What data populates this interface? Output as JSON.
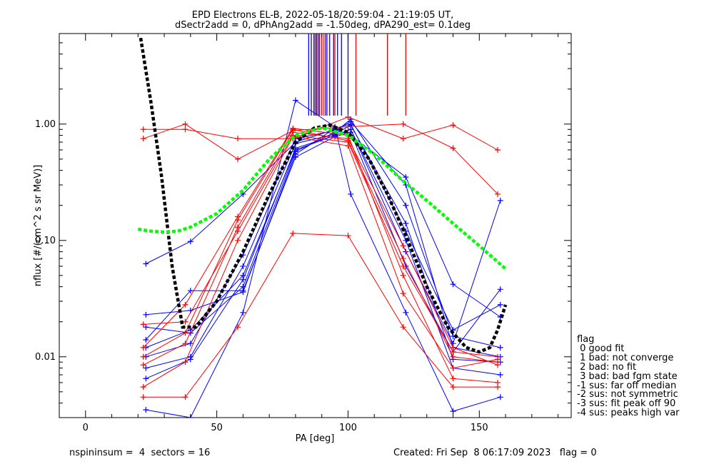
{
  "title": {
    "line1": "EPD Electrons EL-B, 2022-05-18/20:59:04 - 21:19:05 UT,",
    "line2": "dSectr2add = 0, dPhAng2add = -1.50deg, dPA290_est=   0.1deg"
  },
  "footer": {
    "left": "nspininsum =  4  sectors = 16",
    "right": "Created: Fri Sep  8 06:17:09 2023   flag = 0"
  },
  "legend": {
    "title": "flag",
    "items": [
      " 0 good fit",
      " 1 bad: not converge",
      " 2 bad: no fit",
      " 3 bad: bad fgm state",
      "-1 sus: far off median",
      "-2 sus: not symmetric",
      "-3 sus: fit peak off 90",
      "-4 sus: peaks high var"
    ]
  },
  "colors": {
    "blue": "#0000ff",
    "red": "#ff0000",
    "green": "#00ff00",
    "black": "#000000"
  },
  "chart_data": {
    "type": "line",
    "xlabel": "PA [deg]",
    "ylabel": "nflux [#/(cm^2 s sr MeV)]",
    "xlim": [
      -10,
      185
    ],
    "ylim": [
      0.003,
      6
    ],
    "ylog": true,
    "xticks": [
      0,
      50,
      100,
      150
    ],
    "yticks": [
      0.01,
      0.1,
      1.0
    ],
    "ytick_labels": [
      "0.01",
      "0.10",
      "1.00"
    ],
    "series": [
      {
        "color": "blue",
        "x": [
          23,
          40,
          60,
          80,
          95,
          101,
          122,
          140,
          158
        ],
        "y": [
          0.0035,
          0.003,
          0.024,
          1.6,
          0.95,
          0.25,
          0.024,
          0.0034,
          0.0045
        ]
      },
      {
        "color": "blue",
        "x": [
          23,
          40,
          60,
          80,
          95,
          101,
          122,
          140,
          158
        ],
        "y": [
          0.0065,
          0.0095,
          0.046,
          0.62,
          0.8,
          0.9,
          0.1,
          0.008,
          0.007
        ]
      },
      {
        "color": "blue",
        "x": [
          23,
          40,
          60,
          80,
          95,
          101,
          122,
          140,
          158
        ],
        "y": [
          0.008,
          0.01,
          0.06,
          0.68,
          0.82,
          0.98,
          0.14,
          0.0095,
          0.009
        ]
      },
      {
        "color": "blue",
        "x": [
          23,
          40,
          60,
          80,
          95,
          101,
          122,
          140,
          158
        ],
        "y": [
          0.01,
          0.013,
          0.075,
          0.75,
          0.88,
          1.05,
          0.3,
          0.012,
          0.01
        ]
      },
      {
        "color": "blue",
        "x": [
          23,
          40,
          60,
          80,
          95,
          101,
          122,
          140,
          158
        ],
        "y": [
          0.018,
          0.016,
          0.04,
          0.58,
          0.85,
          1.1,
          0.2,
          0.015,
          0.012
        ]
      },
      {
        "color": "blue",
        "x": [
          23,
          40,
          60,
          80,
          95,
          101,
          122,
          140,
          158
        ],
        "y": [
          0.023,
          0.025,
          0.036,
          0.55,
          0.92,
          1.0,
          0.12,
          0.017,
          0.028
        ]
      },
      {
        "color": "blue",
        "x": [
          23,
          40,
          60,
          80,
          95,
          101,
          122,
          140,
          158
        ],
        "y": [
          0.063,
          0.098,
          0.25,
          0.7,
          0.9,
          0.8,
          0.35,
          0.042,
          0.022
        ]
      },
      {
        "color": "blue",
        "x": [
          23,
          40,
          60,
          80,
          95,
          101,
          122,
          140,
          158
        ],
        "y": [
          0.012,
          0.017,
          0.05,
          0.6,
          0.8,
          0.9,
          0.08,
          0.013,
          0.22
        ]
      },
      {
        "color": "blue",
        "x": [
          23,
          40,
          60,
          80,
          95,
          101,
          122,
          140,
          158
        ],
        "y": [
          0.014,
          0.037,
          0.037,
          0.52,
          0.78,
          0.85,
          0.06,
          0.011,
          0.038
        ]
      },
      {
        "color": "red",
        "x": [
          22,
          38,
          58,
          79,
          100,
          121,
          140,
          157
        ],
        "y": [
          0.0045,
          0.0045,
          0.018,
          0.115,
          0.11,
          0.018,
          0.0055,
          0.0055
        ]
      },
      {
        "color": "red",
        "x": [
          22,
          38,
          58,
          79,
          100,
          121,
          140,
          157
        ],
        "y": [
          0.9,
          0.9,
          0.75,
          0.75,
          1.15,
          0.75,
          0.98,
          0.6
        ]
      },
      {
        "color": "red",
        "x": [
          22,
          38,
          58,
          79,
          100,
          121,
          140,
          157
        ],
        "y": [
          0.75,
          1.0,
          0.5,
          0.88,
          0.95,
          1.0,
          0.62,
          0.25
        ]
      },
      {
        "color": "red",
        "x": [
          22,
          38,
          58,
          79,
          100,
          121,
          140,
          157
        ],
        "y": [
          0.0085,
          0.013,
          0.13,
          0.85,
          0.75,
          0.09,
          0.012,
          0.0085
        ]
      },
      {
        "color": "red",
        "x": [
          22,
          38,
          58,
          79,
          100,
          121,
          140,
          157
        ],
        "y": [
          0.01,
          0.016,
          0.15,
          0.9,
          0.72,
          0.07,
          0.01,
          0.009
        ]
      },
      {
        "color": "red",
        "x": [
          22,
          38,
          58,
          79,
          100,
          121,
          140,
          157
        ],
        "y": [
          0.019,
          0.02,
          0.12,
          0.8,
          0.7,
          0.06,
          0.011,
          0.01
        ]
      },
      {
        "color": "red",
        "x": [
          22,
          38,
          58,
          79,
          100,
          121,
          140,
          157
        ],
        "y": [
          0.012,
          0.028,
          0.16,
          0.92,
          0.8,
          0.05,
          0.0065,
          0.006
        ]
      },
      {
        "color": "red",
        "x": [
          22,
          38,
          58,
          79,
          100,
          121,
          140,
          157
        ],
        "y": [
          0.0055,
          0.009,
          0.1,
          0.78,
          0.65,
          0.035,
          0.008,
          0.0095
        ]
      }
    ],
    "fit_curves": [
      {
        "color": "black",
        "style": "dashed",
        "x": [
          21,
          25,
          29,
          33,
          37,
          42,
          50,
          60,
          70,
          80,
          87,
          93,
          100,
          108,
          115,
          122,
          130,
          138,
          145,
          150,
          154,
          157,
          160
        ],
        "y": [
          5.5,
          1.5,
          0.35,
          0.06,
          0.018,
          0.018,
          0.03,
          0.08,
          0.25,
          0.7,
          0.92,
          0.98,
          0.85,
          0.5,
          0.25,
          0.11,
          0.04,
          0.018,
          0.012,
          0.011,
          0.012,
          0.017,
          0.028
        ]
      },
      {
        "color": "green",
        "style": "dashed",
        "x": [
          20,
          25,
          30,
          35,
          40,
          50,
          60,
          70,
          80,
          90,
          100,
          110,
          120,
          130,
          140,
          150,
          160
        ],
        "y": [
          0.125,
          0.12,
          0.118,
          0.12,
          0.13,
          0.17,
          0.27,
          0.5,
          0.8,
          0.93,
          0.8,
          0.55,
          0.34,
          0.22,
          0.14,
          0.09,
          0.057
        ]
      }
    ],
    "top_markers": {
      "blue_x": [
        85,
        86,
        87,
        88,
        89,
        90,
        91.5,
        93,
        94.5,
        96,
        97.5,
        100
      ],
      "red_x": [
        87.5,
        88.5,
        89.2,
        90,
        90.8,
        92,
        95,
        103,
        115,
        122
      ]
    }
  }
}
